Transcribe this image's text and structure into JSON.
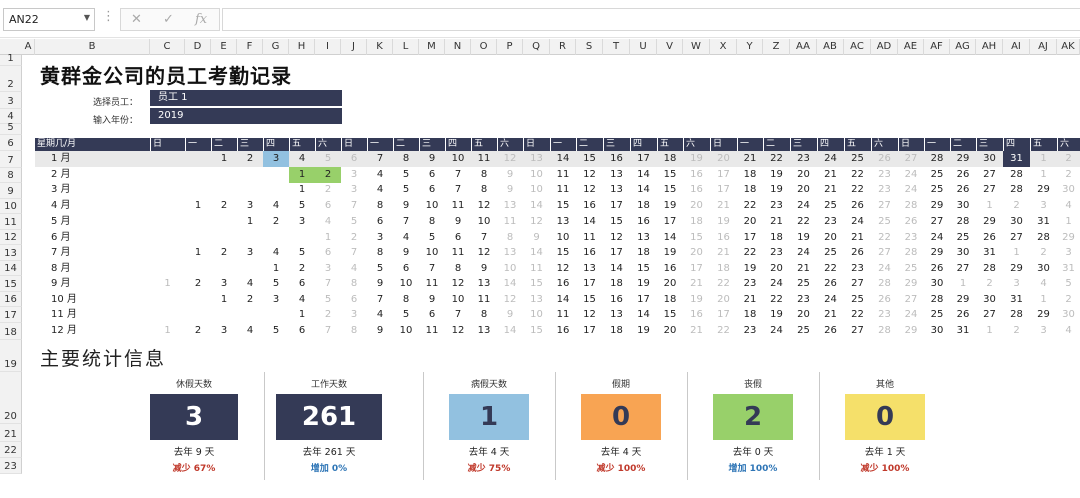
{
  "formula_bar": {
    "name_box": "AN22",
    "cancel_icon": "✕",
    "enter_icon": "✓",
    "fx_label": "fx",
    "formula": ""
  },
  "columns": [
    "A",
    "B",
    "C",
    "D",
    "E",
    "F",
    "G",
    "H",
    "I",
    "J",
    "K",
    "L",
    "M",
    "N",
    "O",
    "P",
    "Q",
    "R",
    "S",
    "T",
    "U",
    "V",
    "W",
    "X",
    "Y",
    "Z",
    "AA",
    "AB",
    "AC",
    "AD",
    "AE",
    "AF",
    "AG",
    "AH",
    "AI",
    "AJ",
    "AK"
  ],
  "rows": [
    "1",
    "2",
    "3",
    "4",
    "5",
    "6",
    "7",
    "8",
    "9",
    "10",
    "11",
    "12",
    "13",
    "14",
    "15",
    "16",
    "17",
    "18",
    "19",
    "20",
    "21",
    "22",
    "23"
  ],
  "sheet": {
    "title": "黄群金公司的员工考勤记录",
    "employee_label": "选择员工：",
    "employee_value": "员工 1",
    "year_label": "输入年份：",
    "year_value": "2019"
  },
  "calendar": {
    "header_label": "星期几/月",
    "weekdays": [
      "日",
      "一",
      "二",
      "三",
      "四",
      "五",
      "六",
      "日",
      "一",
      "二",
      "三",
      "四",
      "五",
      "六",
      "日",
      "一",
      "二",
      "三",
      "四",
      "五",
      "六",
      "日",
      "一",
      "二",
      "三",
      "四",
      "五",
      "六",
      "日",
      "一",
      "二",
      "三",
      "四",
      "五",
      "六"
    ],
    "months": [
      "1 月",
      "2 月",
      "3 月",
      "4 月",
      "5 月",
      "6 月",
      "7 月",
      "8 月",
      "9 月",
      "10 月",
      "11 月",
      "12 月"
    ],
    "month_start_offsets": [
      2,
      5,
      5,
      1,
      3,
      6,
      1,
      4,
      0,
      2,
      5,
      0
    ],
    "month_lengths": [
      31,
      28,
      31,
      30,
      31,
      30,
      31,
      31,
      30,
      31,
      30,
      31
    ],
    "marked_days": [
      {
        "month": 1,
        "day": 3,
        "type": "sick"
      },
      {
        "month": 1,
        "day": 31,
        "type": "vacation"
      },
      {
        "month": 2,
        "day": 1,
        "type": "personal"
      },
      {
        "month": 2,
        "day": 2,
        "type": "personal"
      }
    ],
    "colors": {
      "vacation": "#343a56",
      "sick": "#92c1e0",
      "personal": "#98d06a",
      "weekend_text": "#bcbcbc",
      "header": "#343a56",
      "selected_row": "#e9e9e9"
    }
  },
  "stats": {
    "title": "主要统计信息",
    "cards": [
      {
        "name": "休假天数",
        "value": "3",
        "last_year": "去年  9  天",
        "change": "减少 67%",
        "bg": "#343a56",
        "fg": "#ffffff",
        "change_color": "#c0392b"
      },
      {
        "name": "工作天数",
        "value": "261",
        "last_year": "去年  261  天",
        "change": "增加 0%",
        "bg": "#343a56",
        "fg": "#ffffff",
        "change_color": "#2e75b6"
      },
      {
        "name": "病假天数",
        "value": "1",
        "last_year": "去年  4  天",
        "change": "减少 75%",
        "bg": "#92c1e0",
        "fg": "#343a56",
        "change_color": "#c0392b"
      },
      {
        "name": "假期",
        "value": "0",
        "last_year": "去年  4  天",
        "change": "减少 100%",
        "bg": "#f8a453",
        "fg": "#343a56",
        "change_color": "#c0392b"
      },
      {
        "name": "丧假",
        "value": "2",
        "last_year": "去年  0  天",
        "change": "增加 100%",
        "bg": "#98d06a",
        "fg": "#343a56",
        "change_color": "#2e75b6"
      },
      {
        "name": "其他",
        "value": "0",
        "last_year": "去年  1  天",
        "change": "减少 100%",
        "bg": "#f5e06a",
        "fg": "#343a56",
        "change_color": "#c0392b"
      }
    ]
  }
}
